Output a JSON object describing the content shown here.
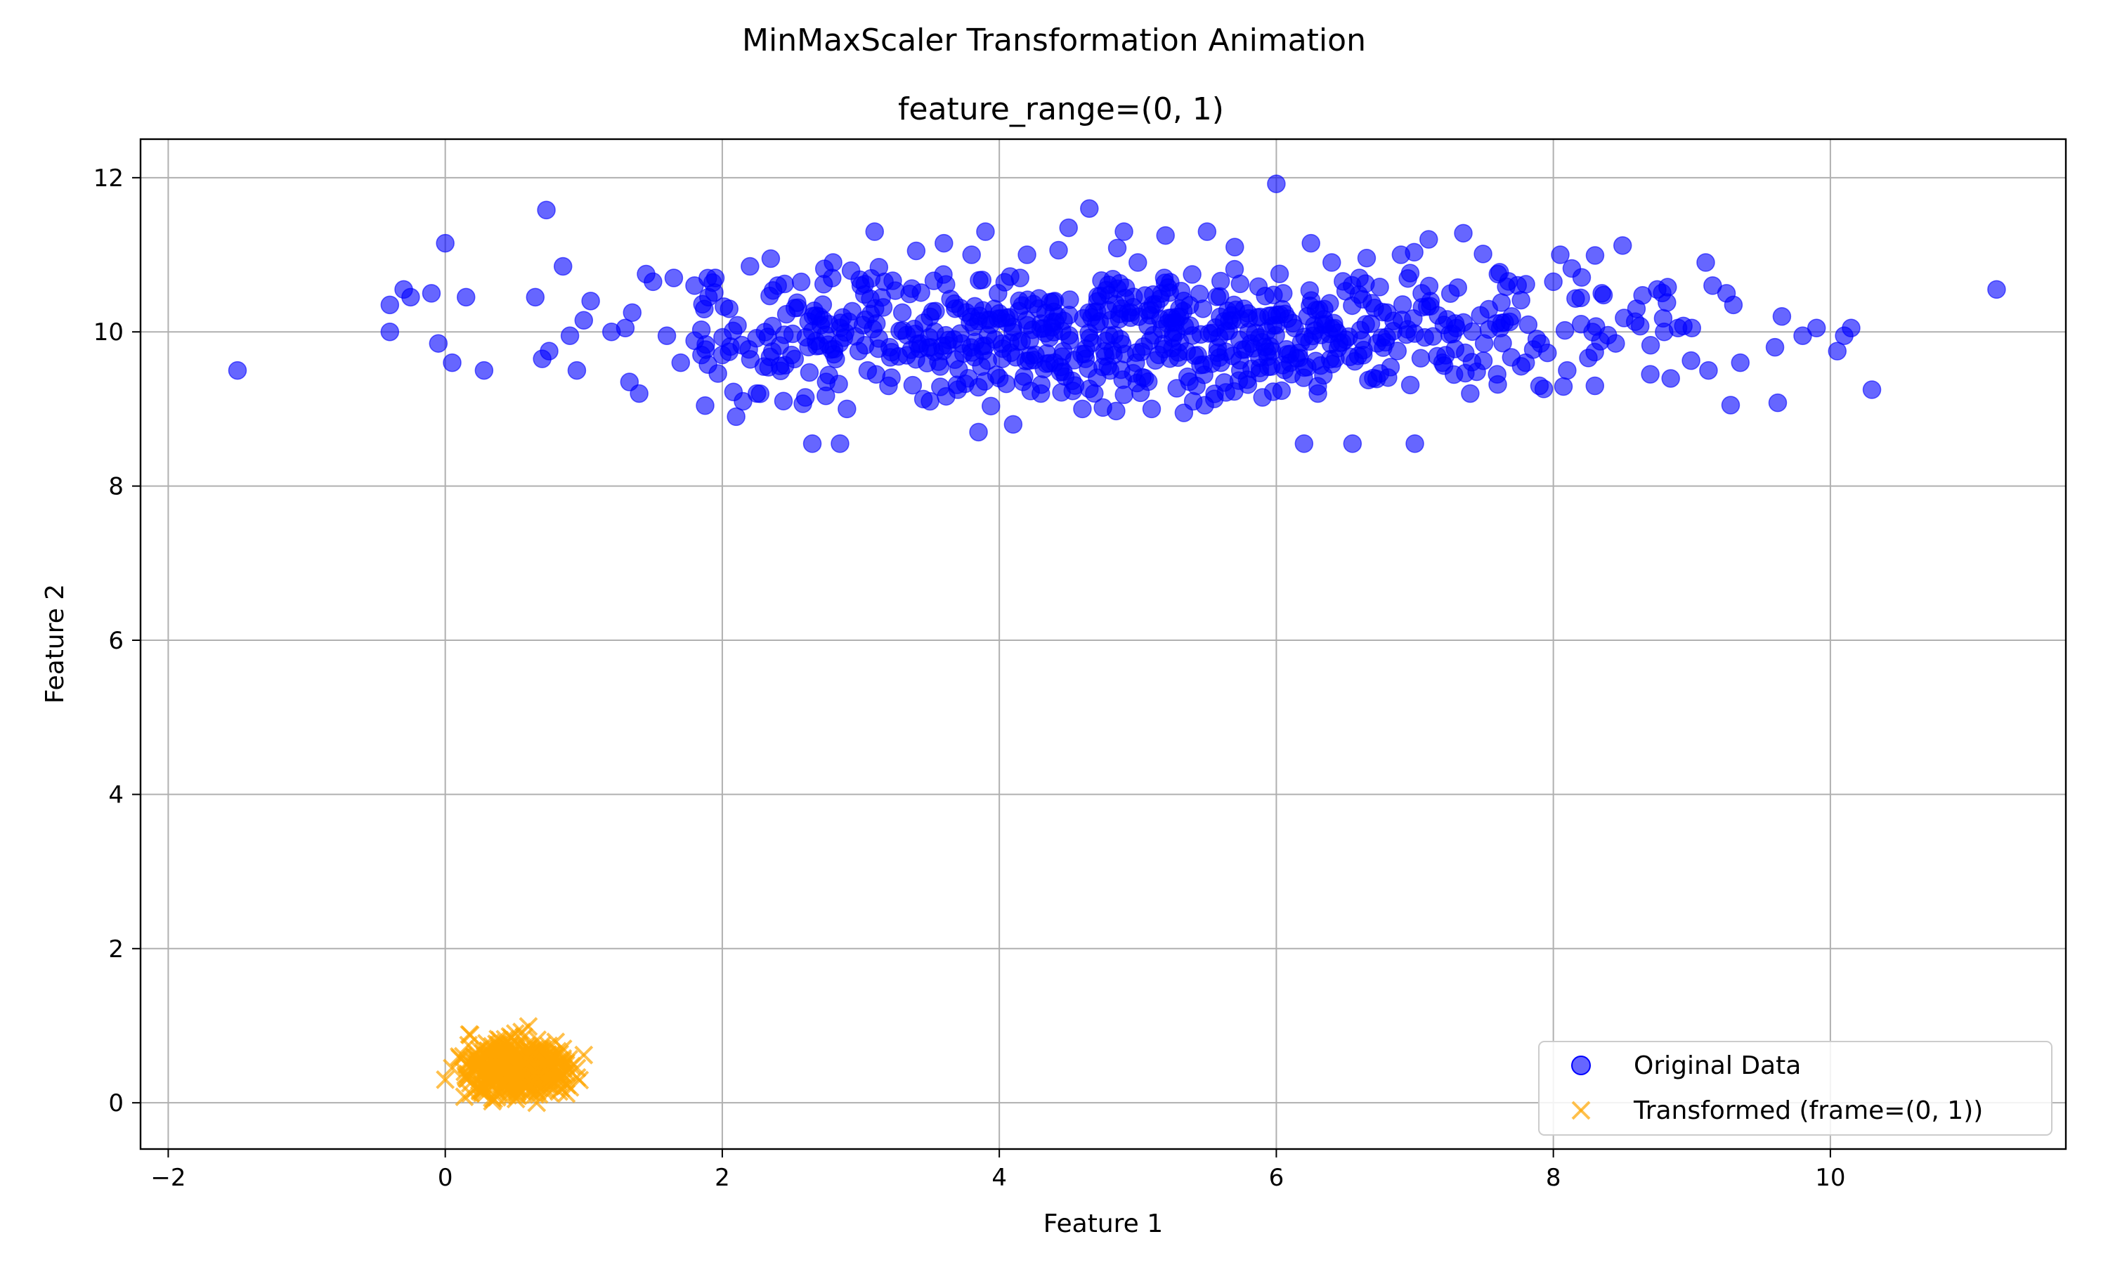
{
  "chart_data": {
    "type": "scatter",
    "title": "MinMaxScaler Transformation Animation",
    "subtitle": "feature_range=(0, 1)",
    "xlabel": "Feature 1",
    "ylabel": "Feature 2",
    "xlim": [
      -2.2,
      11.7
    ],
    "ylim": [
      -0.6,
      12.5
    ],
    "xticks": [
      -2,
      0,
      2,
      4,
      6,
      8,
      10
    ],
    "yticks": [
      0,
      2,
      4,
      6,
      8,
      10,
      12
    ],
    "grid": true,
    "legend_position": "lower-right",
    "colors": {
      "original": "#0000ff",
      "transformed": "#ffa500"
    },
    "series": [
      {
        "name": "Original Data",
        "marker": "circle",
        "points": [
          [
            -1.5,
            9.5
          ],
          [
            -0.4,
            10.35
          ],
          [
            -0.4,
            10.0
          ],
          [
            -0.3,
            10.55
          ],
          [
            -0.25,
            10.45
          ],
          [
            -0.1,
            10.5
          ],
          [
            -0.05,
            9.85
          ],
          [
            0.0,
            11.15
          ],
          [
            0.05,
            9.6
          ],
          [
            0.15,
            10.45
          ],
          [
            0.28,
            9.5
          ],
          [
            0.65,
            10.45
          ],
          [
            0.7,
            9.65
          ],
          [
            0.73,
            11.58
          ],
          [
            0.75,
            9.75
          ],
          [
            0.85,
            10.85
          ],
          [
            0.9,
            9.95
          ],
          [
            0.95,
            9.5
          ],
          [
            1.0,
            10.15
          ],
          [
            1.05,
            10.4
          ],
          [
            1.2,
            10.0
          ],
          [
            1.3,
            10.05
          ],
          [
            1.33,
            9.35
          ],
          [
            1.35,
            10.25
          ],
          [
            1.4,
            9.2
          ],
          [
            1.45,
            10.75
          ],
          [
            1.5,
            10.65
          ],
          [
            1.6,
            9.95
          ],
          [
            1.65,
            10.7
          ],
          [
            1.7,
            9.6
          ],
          [
            1.8,
            10.6
          ],
          [
            1.85,
            9.7
          ],
          [
            1.9,
            10.45
          ],
          [
            1.95,
            10.7
          ],
          [
            2.0,
            9.7
          ],
          [
            2.05,
            10.3
          ],
          [
            2.1,
            8.9
          ],
          [
            2.15,
            9.1
          ],
          [
            2.2,
            10.85
          ],
          [
            2.25,
            9.2
          ],
          [
            2.3,
            9.55
          ],
          [
            2.35,
            10.95
          ],
          [
            2.4,
            10.6
          ],
          [
            2.5,
            9.7
          ],
          [
            2.6,
            9.15
          ],
          [
            2.65,
            8.55
          ],
          [
            2.7,
            10.2
          ],
          [
            2.75,
            9.35
          ],
          [
            2.8,
            10.9
          ],
          [
            2.85,
            8.55
          ],
          [
            2.9,
            9.0
          ],
          [
            3.0,
            10.6
          ],
          [
            3.05,
            9.5
          ],
          [
            3.1,
            11.3
          ],
          [
            3.2,
            9.3
          ],
          [
            3.3,
            10.25
          ],
          [
            3.4,
            11.05
          ],
          [
            3.5,
            9.1
          ],
          [
            3.6,
            11.15
          ],
          [
            3.7,
            9.25
          ],
          [
            3.8,
            11.0
          ],
          [
            3.85,
            8.7
          ],
          [
            3.9,
            11.3
          ],
          [
            4.0,
            9.4
          ],
          [
            4.1,
            8.8
          ],
          [
            4.15,
            10.7
          ],
          [
            4.2,
            11.0
          ],
          [
            4.3,
            9.2
          ],
          [
            4.4,
            10.4
          ],
          [
            4.5,
            11.35
          ],
          [
            4.6,
            9.0
          ],
          [
            4.65,
            11.6
          ],
          [
            4.7,
            10.1
          ],
          [
            4.8,
            9.5
          ],
          [
            4.9,
            11.3
          ],
          [
            5.0,
            10.9
          ],
          [
            5.05,
            9.4
          ],
          [
            5.1,
            9.0
          ],
          [
            5.2,
            11.25
          ],
          [
            5.3,
            10.3
          ],
          [
            5.4,
            9.1
          ],
          [
            5.5,
            11.3
          ],
          [
            5.6,
            9.6
          ],
          [
            5.7,
            11.1
          ],
          [
            5.8,
            10.0
          ],
          [
            5.9,
            9.15
          ],
          [
            6.0,
            11.92
          ],
          [
            6.05,
            10.5
          ],
          [
            6.1,
            9.6
          ],
          [
            6.2,
            8.55
          ],
          [
            6.25,
            11.15
          ],
          [
            6.3,
            9.2
          ],
          [
            6.4,
            10.9
          ],
          [
            6.5,
            9.9
          ],
          [
            6.55,
            8.55
          ],
          [
            6.6,
            10.7
          ],
          [
            6.7,
            9.4
          ],
          [
            6.8,
            10.25
          ],
          [
            6.9,
            11.0
          ],
          [
            7.0,
            8.55
          ],
          [
            7.05,
            10.5
          ],
          [
            7.1,
            11.2
          ],
          [
            7.2,
            9.6
          ],
          [
            7.3,
            10.05
          ],
          [
            7.35,
            11.28
          ],
          [
            7.4,
            9.2
          ],
          [
            7.5,
            9.85
          ],
          [
            7.6,
            10.75
          ],
          [
            7.7,
            10.2
          ],
          [
            7.8,
            9.6
          ],
          [
            7.9,
            9.3
          ],
          [
            8.0,
            10.65
          ],
          [
            8.05,
            11.0
          ],
          [
            8.1,
            9.5
          ],
          [
            8.2,
            10.1
          ],
          [
            8.3,
            9.3
          ],
          [
            8.35,
            10.5
          ],
          [
            8.45,
            9.85
          ],
          [
            8.5,
            11.12
          ],
          [
            8.6,
            10.3
          ],
          [
            8.7,
            9.45
          ],
          [
            8.75,
            10.55
          ],
          [
            8.8,
            10.0
          ],
          [
            8.9,
            10.05
          ],
          [
            9.0,
            10.05
          ],
          [
            9.1,
            10.9
          ],
          [
            9.12,
            9.5
          ],
          [
            9.15,
            10.6
          ],
          [
            9.25,
            10.5
          ],
          [
            9.28,
            9.05
          ],
          [
            9.3,
            10.35
          ],
          [
            9.35,
            9.6
          ],
          [
            9.6,
            9.8
          ],
          [
            9.62,
            9.08
          ],
          [
            9.65,
            10.2
          ],
          [
            9.8,
            9.95
          ],
          [
            9.9,
            10.05
          ],
          [
            10.05,
            9.75
          ],
          [
            10.1,
            9.95
          ],
          [
            10.15,
            10.05
          ],
          [
            10.3,
            9.25
          ],
          [
            11.2,
            10.55
          ]
        ]
      },
      {
        "name": "Transformed (frame=(0, 1))",
        "marker": "x",
        "points": [
          [
            0.0,
            0.3
          ],
          [
            0.18,
            0.88
          ],
          [
            0.34,
            0.02
          ],
          [
            0.6,
            0.99
          ],
          [
            0.66,
            0.0
          ],
          [
            1.0,
            0.62
          ],
          [
            0.05,
            0.45
          ],
          [
            0.9,
            0.2
          ],
          [
            0.95,
            0.45
          ],
          [
            0.1,
            0.6
          ],
          [
            0.85,
            0.7
          ],
          [
            0.25,
            0.15
          ]
        ]
      }
    ]
  }
}
